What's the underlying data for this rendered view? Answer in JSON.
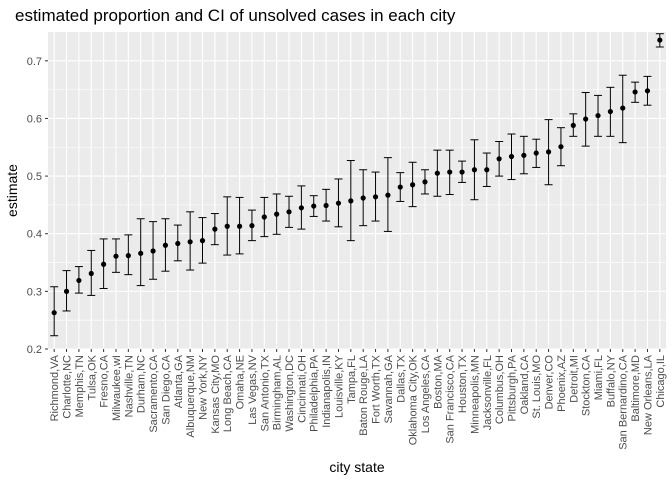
{
  "chart_data": {
    "type": "scatter",
    "title": "estimated proportion and CI of unsolved cases in each city",
    "xlabel": "city state",
    "ylabel": "estimate",
    "ylim": [
      0.2,
      0.75
    ],
    "yticks": [
      0.2,
      0.3,
      0.4,
      0.5,
      0.6,
      0.7
    ],
    "grid": true,
    "points": [
      {
        "city": "Richmond,VA",
        "estimate": 0.263,
        "lower": 0.223,
        "upper": 0.308
      },
      {
        "city": "Charlotte,NC",
        "estimate": 0.3,
        "lower": 0.266,
        "upper": 0.336
      },
      {
        "city": "Memphis,TN",
        "estimate": 0.319,
        "lower": 0.297,
        "upper": 0.343
      },
      {
        "city": "Tulsa,OK",
        "estimate": 0.331,
        "lower": 0.293,
        "upper": 0.371
      },
      {
        "city": "Fresno,CA",
        "estimate": 0.347,
        "lower": 0.305,
        "upper": 0.391
      },
      {
        "city": "Milwaukee,wI",
        "estimate": 0.361,
        "lower": 0.333,
        "upper": 0.391
      },
      {
        "city": "Nashville,TN",
        "estimate": 0.362,
        "lower": 0.329,
        "upper": 0.398
      },
      {
        "city": "Durham,NC",
        "estimate": 0.366,
        "lower": 0.31,
        "upper": 0.426
      },
      {
        "city": "Sacramento,CA",
        "estimate": 0.37,
        "lower": 0.321,
        "upper": 0.421
      },
      {
        "city": "San Diego,CA",
        "estimate": 0.38,
        "lower": 0.335,
        "upper": 0.426
      },
      {
        "city": "Atlanta,GA",
        "estimate": 0.383,
        "lower": 0.353,
        "upper": 0.415
      },
      {
        "city": "Albuquerque,NM",
        "estimate": 0.386,
        "lower": 0.337,
        "upper": 0.438
      },
      {
        "city": "New York,NY",
        "estimate": 0.388,
        "lower": 0.349,
        "upper": 0.428
      },
      {
        "city": "Kansas City,MO",
        "estimate": 0.408,
        "lower": 0.381,
        "upper": 0.435
      },
      {
        "city": "Long Beach,CA",
        "estimate": 0.413,
        "lower": 0.363,
        "upper": 0.464
      },
      {
        "city": "Omaha,NE",
        "estimate": 0.413,
        "lower": 0.365,
        "upper": 0.463
      },
      {
        "city": "Las Vegas,NV",
        "estimate": 0.414,
        "lower": 0.388,
        "upper": 0.441
      },
      {
        "city": "San Antonio,TX",
        "estimate": 0.429,
        "lower": 0.395,
        "upper": 0.463
      },
      {
        "city": "Birmingham,AL",
        "estimate": 0.434,
        "lower": 0.399,
        "upper": 0.469
      },
      {
        "city": "Washington,DC",
        "estimate": 0.438,
        "lower": 0.411,
        "upper": 0.465
      },
      {
        "city": "Cincinnati,OH",
        "estimate": 0.445,
        "lower": 0.408,
        "upper": 0.483
      },
      {
        "city": "Philadelphia,PA",
        "estimate": 0.448,
        "lower": 0.43,
        "upper": 0.466
      },
      {
        "city": "Indianapolis,IN",
        "estimate": 0.449,
        "lower": 0.422,
        "upper": 0.477
      },
      {
        "city": "Louisville,KY",
        "estimate": 0.453,
        "lower": 0.412,
        "upper": 0.495
      },
      {
        "city": "Tampa,FL",
        "estimate": 0.457,
        "lower": 0.388,
        "upper": 0.527
      },
      {
        "city": "Baton Rouge,LA",
        "estimate": 0.462,
        "lower": 0.414,
        "upper": 0.511
      },
      {
        "city": "Fort Worth,TX",
        "estimate": 0.464,
        "lower": 0.422,
        "upper": 0.507
      },
      {
        "city": "Savannah,GA",
        "estimate": 0.467,
        "lower": 0.404,
        "upper": 0.532
      },
      {
        "city": "Dallas,TX",
        "estimate": 0.481,
        "lower": 0.456,
        "upper": 0.506
      },
      {
        "city": "Oklahoma City,OK",
        "estimate": 0.485,
        "lower": 0.447,
        "upper": 0.524
      },
      {
        "city": "Los Angeles,CA",
        "estimate": 0.49,
        "lower": 0.469,
        "upper": 0.511
      },
      {
        "city": "Boston,MA",
        "estimate": 0.505,
        "lower": 0.465,
        "upper": 0.545
      },
      {
        "city": "San Francisco,CA",
        "estimate": 0.507,
        "lower": 0.468,
        "upper": 0.545
      },
      {
        "city": "Houston,TX",
        "estimate": 0.507,
        "lower": 0.489,
        "upper": 0.526
      },
      {
        "city": "Minneapolis,MN",
        "estimate": 0.511,
        "lower": 0.459,
        "upper": 0.563
      },
      {
        "city": "Jacksonville,FL",
        "estimate": 0.511,
        "lower": 0.482,
        "upper": 0.54
      },
      {
        "city": "Columbus,OH",
        "estimate": 0.53,
        "lower": 0.5,
        "upper": 0.56
      },
      {
        "city": "Pittsburgh,PA",
        "estimate": 0.534,
        "lower": 0.494,
        "upper": 0.573
      },
      {
        "city": "Oakland,CA",
        "estimate": 0.536,
        "lower": 0.504,
        "upper": 0.569
      },
      {
        "city": "St. Louis,MO",
        "estimate": 0.54,
        "lower": 0.515,
        "upper": 0.564
      },
      {
        "city": "Denver,CO",
        "estimate": 0.542,
        "lower": 0.485,
        "upper": 0.598
      },
      {
        "city": "Phoenix,AZ",
        "estimate": 0.551,
        "lower": 0.518,
        "upper": 0.584
      },
      {
        "city": "Detroit,MI",
        "estimate": 0.588,
        "lower": 0.569,
        "upper": 0.608
      },
      {
        "city": "Stockton,CA",
        "estimate": 0.599,
        "lower": 0.552,
        "upper": 0.645
      },
      {
        "city": "Miami,FL",
        "estimate": 0.605,
        "lower": 0.569,
        "upper": 0.64
      },
      {
        "city": "Buffalo,NY",
        "estimate": 0.612,
        "lower": 0.569,
        "upper": 0.654
      },
      {
        "city": "San Bernardino,CA",
        "estimate": 0.618,
        "lower": 0.558,
        "upper": 0.675
      },
      {
        "city": "Baltimore,MD",
        "estimate": 0.646,
        "lower": 0.628,
        "upper": 0.663
      },
      {
        "city": "New Orleans,LA",
        "estimate": 0.648,
        "lower": 0.623,
        "upper": 0.673
      },
      {
        "city": "Chicago,IL",
        "estimate": 0.736,
        "lower": 0.724,
        "upper": 0.747
      }
    ]
  }
}
